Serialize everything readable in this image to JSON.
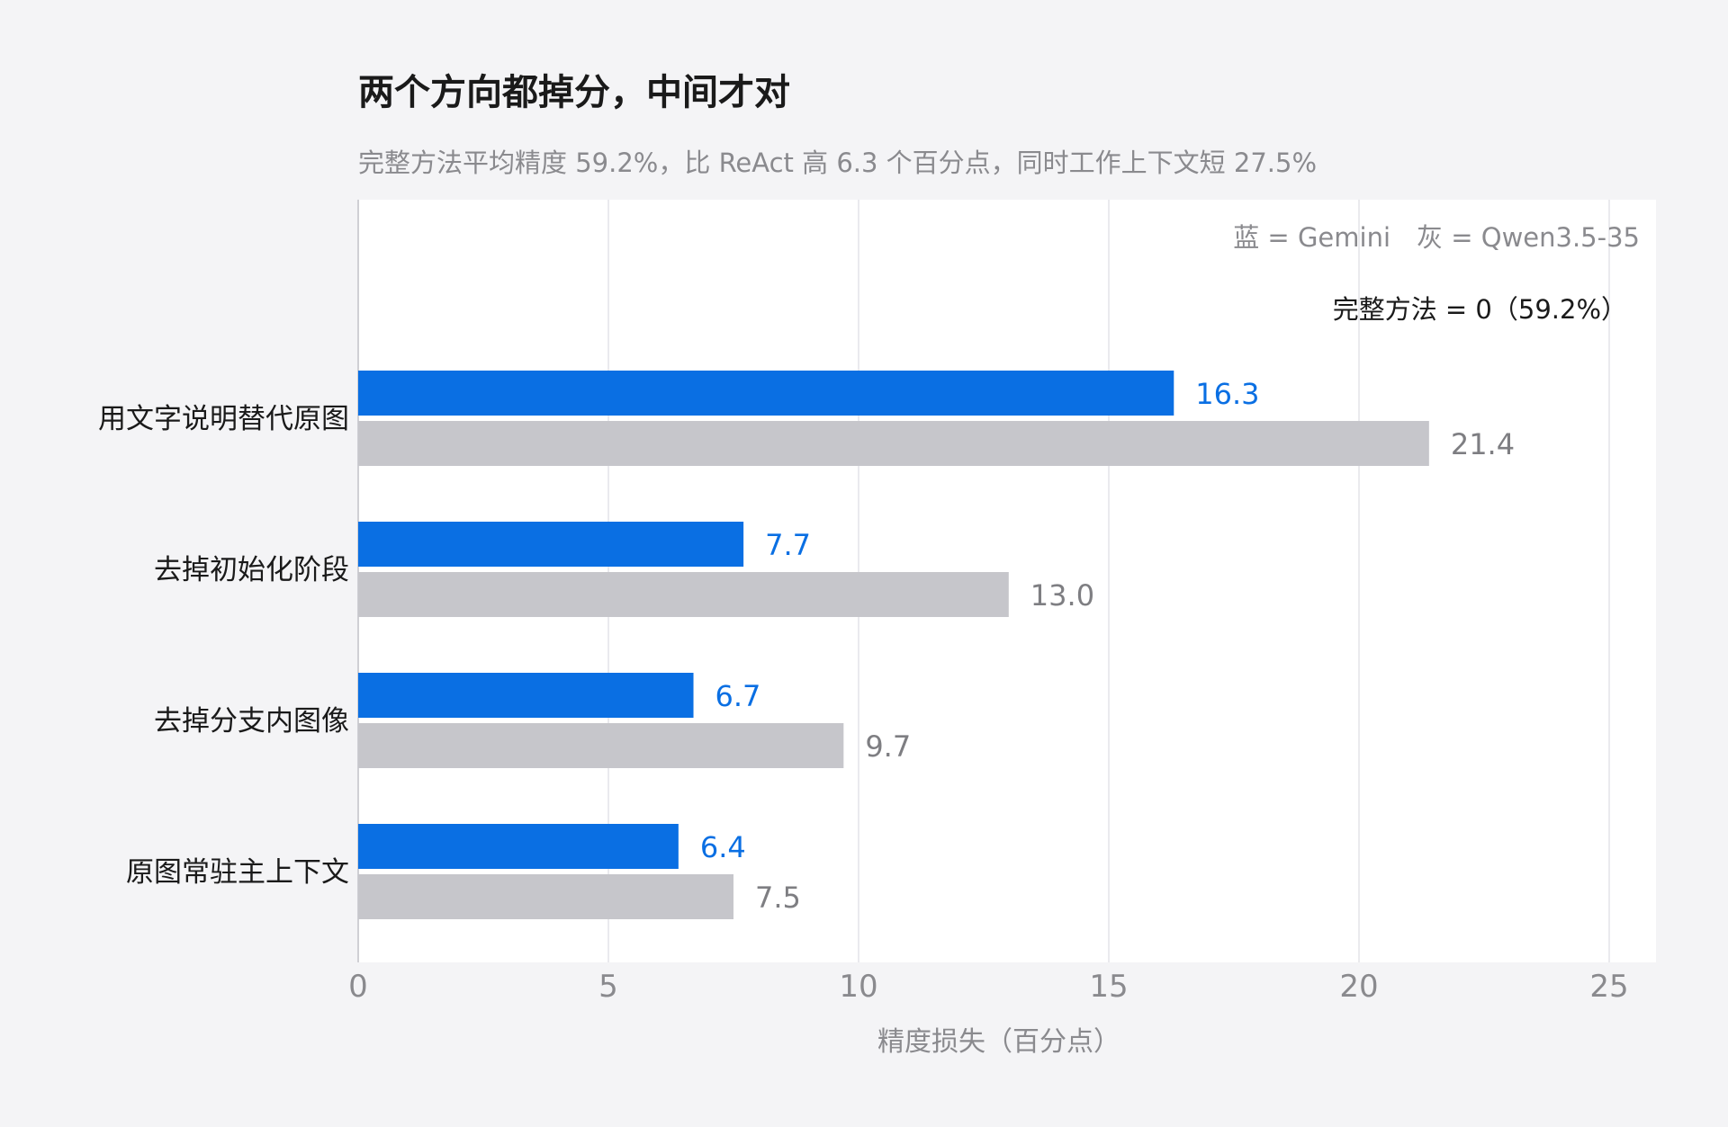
{
  "chart_data": {
    "type": "bar",
    "orientation": "horizontal",
    "title": "两个方向都掉分，中间才对",
    "subtitle": "完整方法平均精度 59.2%，比 ReAct 高 6.3 个百分点，同时工作上下文短 27.5%",
    "xlabel": "精度损失（百分点）",
    "xlim": [
      0,
      26
    ],
    "xticks": [
      0,
      5,
      10,
      15,
      20,
      25
    ],
    "grid": true,
    "categories": [
      "用文字说明替代原图",
      "去掉初始化阶段",
      "去掉分支内图像",
      "原图常驻主上下文"
    ],
    "series": [
      {
        "name": "Gemini",
        "color": "#0a6fe3",
        "label_color": "#0a6fe3",
        "values": [
          16.3,
          7.7,
          6.7,
          6.4
        ]
      },
      {
        "name": "Qwen3.5-35",
        "color": "#c6c6cb",
        "label_color": "#7e7e82",
        "values": [
          21.4,
          13.0,
          9.7,
          7.5
        ]
      }
    ],
    "legend_text": "蓝 = Gemini　灰 = Qwen3.5-35",
    "legend_position": "top-right",
    "baseline_note": "完整方法 = 0（59.2%）"
  }
}
